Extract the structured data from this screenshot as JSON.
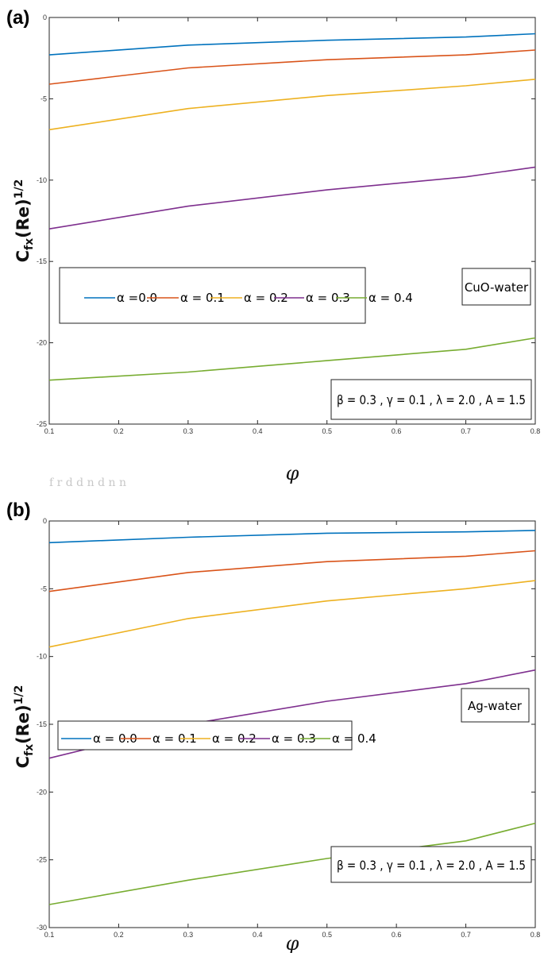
{
  "colors": {
    "blue": "#0072bd",
    "orange": "#d95319",
    "yellow": "#edb120",
    "purple": "#7e2f8e",
    "green": "#77ac30",
    "axis": "#262626",
    "grid": "#ffffff"
  },
  "bleed_text": "f          r              d      d            n    d     n        n",
  "chart_data": [
    {
      "panel_label": "(a)",
      "type": "line",
      "xlabel": "φ",
      "ylabel": {
        "main": "C",
        "sub": "fx",
        "mid": "(Re)",
        "sup": "1/2"
      },
      "xlim": [
        0.1,
        0.8
      ],
      "ylim": [
        -25,
        0
      ],
      "xticks": [
        "0.1",
        "0.2",
        "0.3",
        "0.4",
        "0.5",
        "0.6",
        "0.7",
        "0.8"
      ],
      "yticks": [
        "0",
        "-5",
        "-10",
        "-15",
        "-20",
        "-25"
      ],
      "ytick_values": [
        0,
        -5,
        -10,
        -15,
        -20,
        -25
      ],
      "x": [
        0.1,
        0.3,
        0.5,
        0.7,
        0.8
      ],
      "series": [
        {
          "name": "α =0.0",
          "color": "#0072bd",
          "values": [
            -2.3,
            -1.7,
            -1.4,
            -1.2,
            -1.0
          ]
        },
        {
          "name": "α = 0.1",
          "color": "#d95319",
          "values": [
            -4.1,
            -3.1,
            -2.6,
            -2.3,
            -2.0
          ]
        },
        {
          "name": "α = 0.2",
          "color": "#edb120",
          "values": [
            -6.9,
            -5.6,
            -4.8,
            -4.2,
            -3.8
          ]
        },
        {
          "name": "α = 0.3",
          "color": "#7e2f8e",
          "values": [
            -13.0,
            -11.6,
            -10.6,
            -9.8,
            -9.2
          ]
        },
        {
          "name": "α = 0.4",
          "color": "#77ac30",
          "values": [
            -22.3,
            -21.8,
            -21.1,
            -20.4,
            -19.7
          ]
        }
      ],
      "annotation": "CuO-water",
      "params": "β = 0.3 , γ = 0.1 , λ = 2.0 , A = 1.5"
    },
    {
      "panel_label": "(b)",
      "type": "line",
      "xlabel": "φ",
      "ylabel": {
        "main": "C",
        "sub": "fx",
        "mid": "(Re)",
        "sup": "1/2"
      },
      "xlim": [
        0.1,
        0.8
      ],
      "ylim": [
        -30,
        0
      ],
      "xticks": [
        "0.1",
        "0.2",
        "0.3",
        "0.4",
        "0.5",
        "0.6",
        "0.7",
        "0.8"
      ],
      "yticks": [
        "0",
        "-5",
        "-10",
        "-15",
        "-20",
        "-25",
        "-30"
      ],
      "ytick_values": [
        0,
        -5,
        -10,
        -15,
        -20,
        -25,
        -30
      ],
      "x": [
        0.1,
        0.3,
        0.5,
        0.7,
        0.8
      ],
      "series": [
        {
          "name": "α = 0.0",
          "color": "#0072bd",
          "values": [
            -1.6,
            -1.2,
            -0.9,
            -0.8,
            -0.7
          ]
        },
        {
          "name": "α = 0.1",
          "color": "#d95319",
          "values": [
            -5.2,
            -3.8,
            -3.0,
            -2.6,
            -2.2
          ]
        },
        {
          "name": "α = 0.2",
          "color": "#edb120",
          "values": [
            -9.3,
            -7.2,
            -5.9,
            -5.0,
            -4.4
          ]
        },
        {
          "name": "α = 0.3",
          "color": "#7e2f8e",
          "values": [
            -17.5,
            -15.0,
            -13.3,
            -12.0,
            -11.0
          ]
        },
        {
          "name": "α = 0.4",
          "color": "#77ac30",
          "values": [
            -28.3,
            -26.5,
            -24.9,
            -23.6,
            -22.3
          ]
        }
      ],
      "annotation": "Ag-water",
      "params": "β = 0.3 , γ = 0.1 , λ = 2.0 , A = 1.5"
    }
  ]
}
